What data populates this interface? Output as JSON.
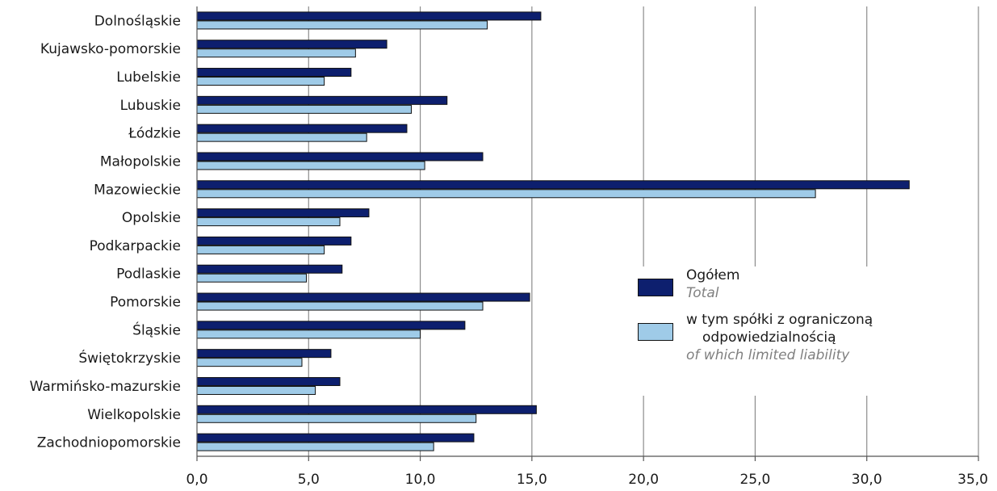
{
  "chart_data": {
    "type": "bar",
    "orientation": "horizontal",
    "categories": [
      "Dolnośląskie",
      "Kujawsko-pomorskie",
      "Lubelskie",
      "Lubuskie",
      "Łódzkie",
      "Małopolskie",
      "Mazowieckie",
      "Opolskie",
      "Podkarpackie",
      "Podlaskie",
      "Pomorskie",
      "Śląskie",
      "Świętokrzyskie",
      "Warmińsko-mazurskie",
      "Wielkopolskie",
      "Zachodniopomorskie"
    ],
    "series": [
      {
        "name": "Ogółem",
        "name_en": "Total",
        "color": "#0d1f6e",
        "values": [
          15.4,
          8.5,
          6.9,
          11.2,
          9.4,
          12.8,
          31.9,
          7.7,
          6.9,
          6.5,
          14.9,
          12.0,
          6.0,
          6.4,
          15.2,
          12.4
        ]
      },
      {
        "name": "w tym spółki z ograniczoną odpowiedzialnością",
        "name_en": "of which limited liability",
        "color": "#9fcbe8",
        "values": [
          13.0,
          7.1,
          5.7,
          9.6,
          7.6,
          10.2,
          27.7,
          6.4,
          5.7,
          4.9,
          12.8,
          10.0,
          4.7,
          5.3,
          12.5,
          10.6
        ]
      }
    ],
    "xlim": [
      0,
      35
    ],
    "xticks": [
      "0,0",
      "5,0",
      "10,0",
      "15,0",
      "20,0",
      "25,0",
      "30,0",
      "35,0"
    ],
    "grid": "vertical",
    "legend_position": "right",
    "title": "",
    "xlabel": "",
    "ylabel": ""
  },
  "legend": {
    "total_pl": "Ogółem",
    "total_en": "Total",
    "llc_pl_line1": "w tym spółki z ograniczoną",
    "llc_pl_line2": "odpowiedzialnością",
    "llc_en": "of which limited liability"
  }
}
